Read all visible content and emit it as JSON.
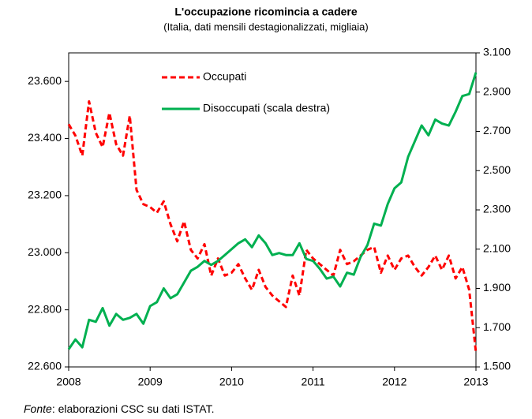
{
  "chart_data": {
    "type": "line",
    "title": "L'occupazione ricomincia a cadere",
    "subtitle": "(Italia, dati mensili destagionalizzati, migliaia)",
    "note_label": "Fonte",
    "note": ": elaborazioni CSC su dati ISTAT.",
    "x": [
      2008,
      2008.083,
      2008.167,
      2008.25,
      2008.333,
      2008.417,
      2008.5,
      2008.583,
      2008.667,
      2008.75,
      2008.833,
      2008.917,
      2009,
      2009.083,
      2009.167,
      2009.25,
      2009.333,
      2009.417,
      2009.5,
      2009.583,
      2009.667,
      2009.75,
      2009.833,
      2009.917,
      2010,
      2010.083,
      2010.167,
      2010.25,
      2010.333,
      2010.417,
      2010.5,
      2010.583,
      2010.667,
      2010.75,
      2010.833,
      2010.917,
      2011,
      2011.083,
      2011.167,
      2011.25,
      2011.333,
      2011.417,
      2011.5,
      2011.583,
      2011.667,
      2011.75,
      2011.833,
      2011.917,
      2012,
      2012.083,
      2012.167,
      2012.25,
      2012.333,
      2012.417,
      2012.5,
      2012.583,
      2012.667,
      2012.75,
      2012.833,
      2012.917,
      2013
    ],
    "xlim": [
      2008,
      2013
    ],
    "xticks": [
      2008,
      2009,
      2010,
      2011,
      2012,
      2013
    ],
    "ylim": [
      22600,
      23700
    ],
    "yticks": [
      {
        "value": 22600,
        "label": "22.600"
      },
      {
        "value": 22800,
        "label": "22.800"
      },
      {
        "value": 23000,
        "label": "23.000"
      },
      {
        "value": 23200,
        "label": "23.200"
      },
      {
        "value": 23400,
        "label": "23.400"
      },
      {
        "value": 23600,
        "label": "23.600"
      }
    ],
    "y2lim": [
      1500,
      3100
    ],
    "y2ticks": [
      {
        "value": 1500,
        "label": "1.500"
      },
      {
        "value": 1700,
        "label": "1.700"
      },
      {
        "value": 1900,
        "label": "1.900"
      },
      {
        "value": 2100,
        "label": "2.100"
      },
      {
        "value": 2300,
        "label": "2.300"
      },
      {
        "value": 2500,
        "label": "2.500"
      },
      {
        "value": 2700,
        "label": "2.700"
      },
      {
        "value": 2900,
        "label": "2.900"
      },
      {
        "value": 3100,
        "label": "3.100"
      }
    ],
    "series": [
      {
        "name": "Occupati",
        "color": "#ff0000",
        "dashed": true,
        "values": [
          23450,
          23410,
          23340,
          23530,
          23420,
          23370,
          23490,
          23380,
          23340,
          23480,
          23220,
          23170,
          23160,
          23140,
          23180,
          23100,
          23040,
          23110,
          23010,
          22980,
          23030,
          22920,
          22980,
          22920,
          22930,
          22960,
          22910,
          22870,
          22940,
          22880,
          22850,
          22830,
          22810,
          22920,
          22850,
          23010,
          22980,
          22960,
          22940,
          22920,
          23010,
          22960,
          22970,
          22990,
          23010,
          23020,
          22930,
          22990,
          22940,
          22980,
          22990,
          22950,
          22920,
          22950,
          22990,
          22940,
          22990,
          22910,
          22950,
          22870,
          22650
        ]
      },
      {
        "name": "Disoccupati (scala destra)",
        "color": "#00b050",
        "axis": "y2",
        "values": [
          1590,
          1640,
          1600,
          1740,
          1730,
          1800,
          1710,
          1770,
          1740,
          1750,
          1770,
          1720,
          1810,
          1830,
          1900,
          1850,
          1870,
          1930,
          1990,
          2010,
          2040,
          2020,
          2040,
          2070,
          2100,
          2130,
          2150,
          2110,
          2170,
          2130,
          2070,
          2080,
          2070,
          2070,
          2130,
          2050,
          2040,
          2000,
          1950,
          1960,
          1910,
          1980,
          1970,
          2060,
          2120,
          2230,
          2220,
          2330,
          2410,
          2440,
          2570,
          2650,
          2730,
          2680,
          2760,
          2740,
          2730,
          2800,
          2880,
          2890,
          3000
        ]
      }
    ]
  }
}
